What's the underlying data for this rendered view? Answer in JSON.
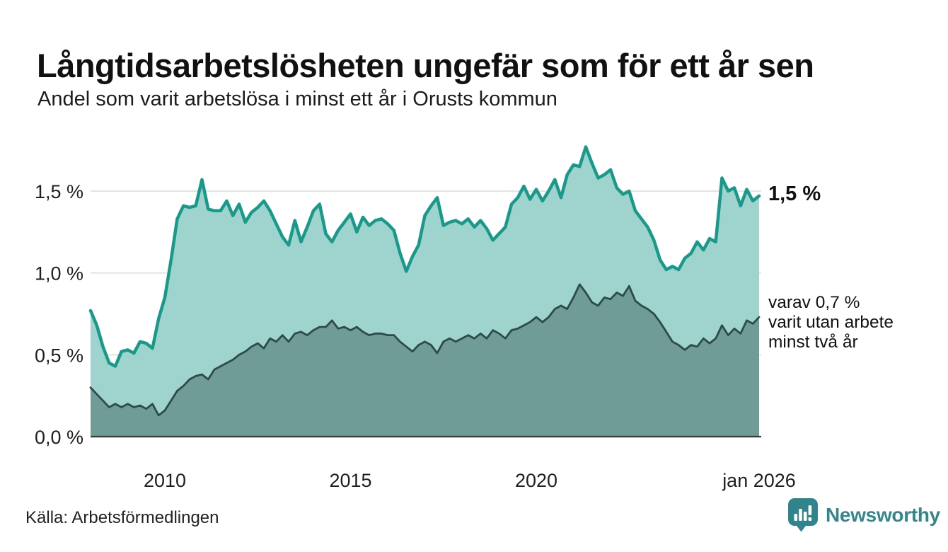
{
  "header": {
    "title": "Långtidsarbetslösheten ungefär som för ett år sen",
    "subtitle": "Andel som varit arbetslösa i minst ett år i Orusts kommun"
  },
  "annotations": {
    "latest_total_label": "1,5 %",
    "secondary_label_line1": "varav 0,7 %",
    "secondary_label_line2": "varit utan arbete",
    "secondary_label_line3": "minst två år"
  },
  "footer": {
    "source": "Källa: Arbetsförmedlingen",
    "brand_name": "Newsworthy",
    "brand_icon": "bar-chart-speech-bubble-icon"
  },
  "colors": {
    "total_line": "#18998a",
    "total_fill": "#9fd3cd",
    "secondary_line": "#2d4b47",
    "secondary_fill": "#6f9c97",
    "gridline": "#e5e2e0",
    "axis_line": "#3b3b3b",
    "text": "#1f1f1f",
    "brand_teal": "#35868c"
  },
  "chart_data": {
    "type": "area",
    "title": "Långtidsarbetslösheten ungefär som för ett år sen",
    "subtitle": "Andel som varit arbetslösa i minst ett år i Orusts kommun",
    "source": "Arbetsförmedlingen",
    "xlabel": "",
    "ylabel": "",
    "grid": true,
    "legend_position": "right-annotations",
    "x_start": 2008.0,
    "x_end": 2026.0,
    "x_step_years": 0.1666667,
    "ylim": [
      0,
      1.85
    ],
    "yticks": [
      {
        "v": 0.0,
        "label": "0,0 %"
      },
      {
        "v": 0.5,
        "label": "0,5 %"
      },
      {
        "v": 1.0,
        "label": "1,0 %"
      },
      {
        "v": 1.5,
        "label": "1,5 %"
      }
    ],
    "xticks": [
      {
        "v": 2010.0,
        "label": "2010"
      },
      {
        "v": 2015.0,
        "label": "2015"
      },
      {
        "v": 2020.0,
        "label": "2020"
      },
      {
        "v": 2026.0,
        "label": "jan 2026"
      }
    ],
    "series": [
      {
        "name": "Andel arbetslösa minst ett år",
        "end_label": "1,5 %",
        "line_color": "#18998a",
        "fill_color": "#9fd3cd",
        "line_width": 4.5,
        "values": [
          0.77,
          0.68,
          0.55,
          0.45,
          0.43,
          0.52,
          0.53,
          0.51,
          0.58,
          0.57,
          0.54,
          0.72,
          0.85,
          1.08,
          1.33,
          1.41,
          1.4,
          1.41,
          1.57,
          1.39,
          1.38,
          1.38,
          1.44,
          1.35,
          1.42,
          1.31,
          1.37,
          1.4,
          1.44,
          1.38,
          1.3,
          1.22,
          1.17,
          1.32,
          1.19,
          1.28,
          1.38,
          1.42,
          1.24,
          1.19,
          1.26,
          1.31,
          1.36,
          1.25,
          1.34,
          1.29,
          1.32,
          1.33,
          1.3,
          1.26,
          1.12,
          1.01,
          1.1,
          1.17,
          1.35,
          1.41,
          1.46,
          1.29,
          1.31,
          1.32,
          1.3,
          1.33,
          1.28,
          1.32,
          1.27,
          1.2,
          1.24,
          1.28,
          1.42,
          1.46,
          1.53,
          1.45,
          1.51,
          1.44,
          1.5,
          1.57,
          1.46,
          1.6,
          1.66,
          1.65,
          1.77,
          1.67,
          1.58,
          1.6,
          1.63,
          1.52,
          1.48,
          1.5,
          1.38,
          1.33,
          1.28,
          1.2,
          1.08,
          1.02,
          1.04,
          1.02,
          1.09,
          1.12,
          1.19,
          1.14,
          1.21,
          1.19,
          1.58,
          1.5,
          1.52,
          1.41,
          1.51,
          1.44,
          1.47
        ]
      },
      {
        "name": "varav utan arbete minst två år",
        "end_label": "varav 0,7 % varit utan arbete minst två år",
        "line_color": "#2d4b47",
        "fill_color": "#6f9c97",
        "line_width": 2.8,
        "values": [
          0.3,
          0.26,
          0.22,
          0.18,
          0.2,
          0.18,
          0.2,
          0.18,
          0.19,
          0.17,
          0.2,
          0.13,
          0.16,
          0.22,
          0.28,
          0.31,
          0.35,
          0.37,
          0.38,
          0.35,
          0.41,
          0.43,
          0.45,
          0.47,
          0.5,
          0.52,
          0.55,
          0.57,
          0.54,
          0.6,
          0.58,
          0.62,
          0.58,
          0.63,
          0.64,
          0.62,
          0.65,
          0.67,
          0.67,
          0.71,
          0.66,
          0.67,
          0.65,
          0.67,
          0.64,
          0.62,
          0.63,
          0.63,
          0.62,
          0.62,
          0.58,
          0.55,
          0.52,
          0.56,
          0.58,
          0.56,
          0.51,
          0.58,
          0.6,
          0.58,
          0.6,
          0.62,
          0.6,
          0.63,
          0.6,
          0.65,
          0.63,
          0.6,
          0.65,
          0.66,
          0.68,
          0.7,
          0.73,
          0.7,
          0.73,
          0.78,
          0.8,
          0.78,
          0.85,
          0.93,
          0.88,
          0.82,
          0.8,
          0.85,
          0.84,
          0.88,
          0.86,
          0.92,
          0.83,
          0.8,
          0.78,
          0.75,
          0.7,
          0.64,
          0.58,
          0.56,
          0.53,
          0.56,
          0.55,
          0.6,
          0.57,
          0.6,
          0.68,
          0.62,
          0.66,
          0.63,
          0.71,
          0.69,
          0.73
        ]
      }
    ]
  }
}
